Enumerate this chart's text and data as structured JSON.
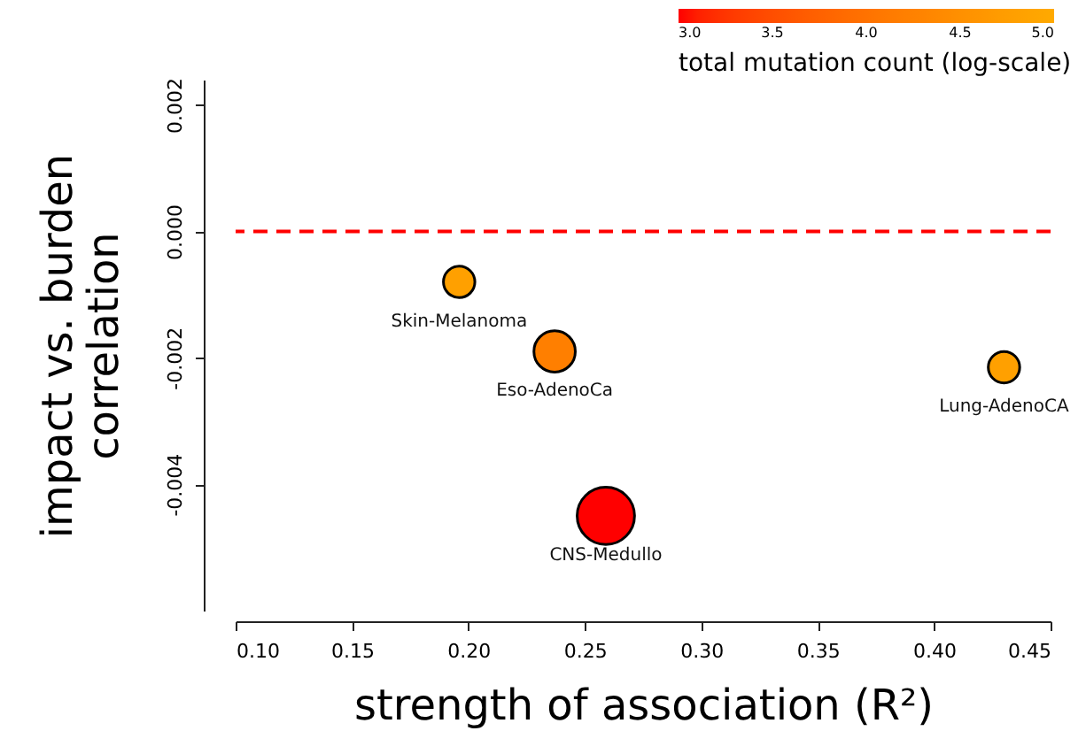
{
  "chart_data": {
    "type": "bubble",
    "xlabel": "strength of association (R²)",
    "ylabel": "impact vs. burden\ncorrelation",
    "clabel": "total mutation count (log-scale)",
    "x": [
      0.196,
      0.237,
      0.259,
      0.43
    ],
    "values": [
      -0.0008,
      -0.0019,
      -0.0045,
      -0.00215
    ],
    "sizes": [
      0.3,
      0.52,
      1,
      0.3
    ],
    "cvalues": [
      4.8,
      4.2,
      3.0,
      4.8
    ],
    "clim": [
      3.0,
      5.0
    ],
    "cticks": [
      {
        "value": 3,
        "label": "3.0"
      },
      {
        "value": 3.5,
        "label": "3.5"
      },
      {
        "value": 4,
        "label": "4.0"
      },
      {
        "value": 4.5,
        "label": "4.5"
      },
      {
        "value": 5,
        "label": "5.0"
      }
    ],
    "xlim": [
      0.1,
      0.45
    ],
    "xticks": [
      {
        "value": 0.1,
        "label": "0.10"
      },
      {
        "value": 0.15,
        "label": "0.15"
      },
      {
        "value": 0.2,
        "label": "0.20"
      },
      {
        "value": 0.25,
        "label": "0.25"
      },
      {
        "value": 0.3,
        "label": "0.30"
      },
      {
        "value": 0.35,
        "label": "0.35"
      },
      {
        "value": 0.4,
        "label": "0.40"
      },
      {
        "value": 0.45,
        "label": "0.45"
      }
    ],
    "ylim": [
      -0.006,
      0.0024
    ],
    "yticks": [
      {
        "value": -0.004,
        "label": "-0.004"
      },
      {
        "value": -0.002,
        "label": "-0.002"
      },
      {
        "value": 0,
        "label": "0.000"
      },
      {
        "value": 0.002,
        "label": "0.002"
      }
    ],
    "ref_lines": [
      {
        "axis": "y",
        "value": 0,
        "color": "#ff0000",
        "line_style": "dashed"
      }
    ],
    "annotations": [
      {
        "text": "Skin-Melanoma",
        "x": 0.196,
        "y": -0.0008
      },
      {
        "text": "Eso-AdenoCa",
        "x": 0.237,
        "y": -0.0019
      },
      {
        "text": "CNS-Medullo",
        "x": 0.259,
        "y": -0.0045
      },
      {
        "text": "Lung-AdenoCA",
        "x": 0.43,
        "y": -0.00215
      }
    ],
    "grid": false
  }
}
